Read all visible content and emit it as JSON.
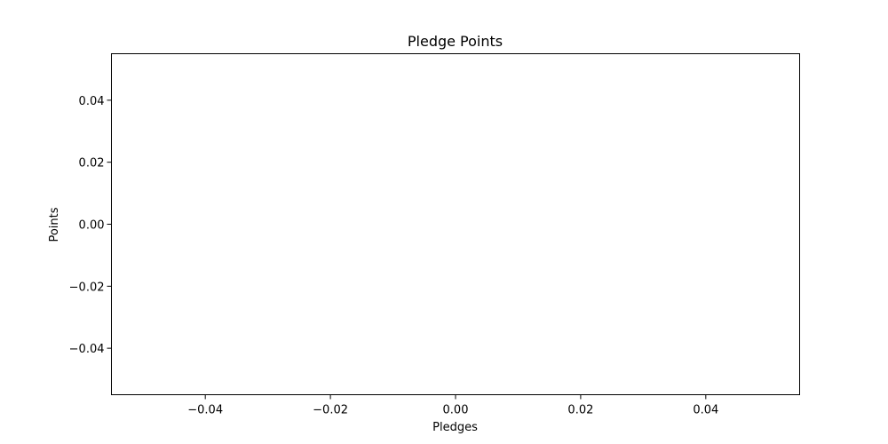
{
  "chart_data": {
    "type": "scatter",
    "title": "Pledge Points",
    "xlabel": "Pledges",
    "ylabel": "Points",
    "series": [],
    "xlim": [
      -0.055,
      0.055
    ],
    "ylim": [
      -0.055,
      0.055
    ],
    "xticks": [
      -0.04,
      -0.02,
      0.0,
      0.02,
      0.04
    ],
    "yticks": [
      -0.04,
      -0.02,
      0.0,
      0.02,
      0.04
    ],
    "xtick_labels": [
      "−0.04",
      "−0.02",
      "0.00",
      "0.02",
      "0.04"
    ],
    "ytick_labels": [
      "−0.04",
      "−0.02",
      "0.00",
      "0.02",
      "0.04"
    ],
    "grid": false,
    "legend": false
  }
}
